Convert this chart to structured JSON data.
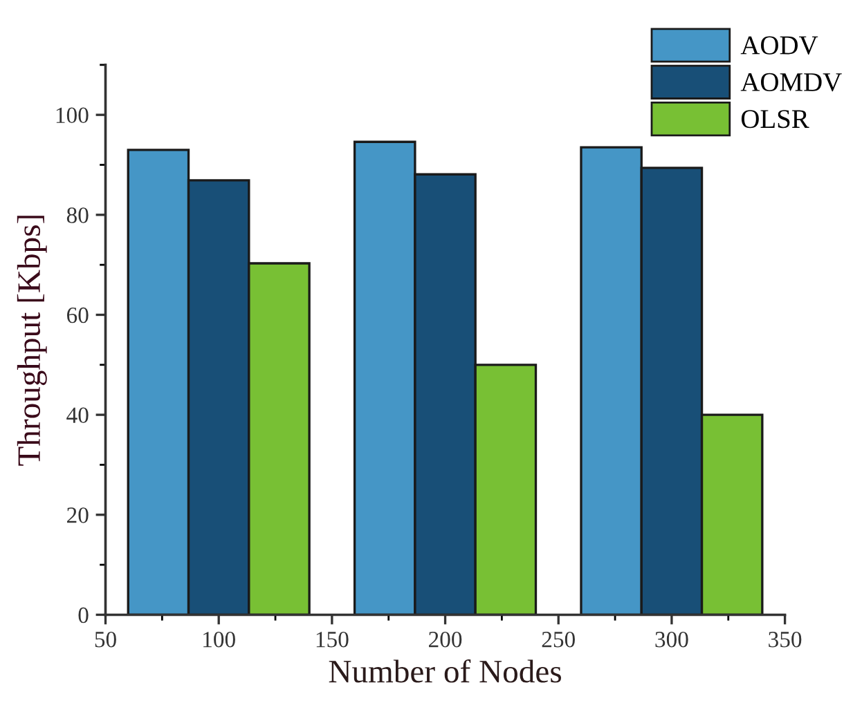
{
  "chart_data": {
    "type": "bar",
    "xlabel": "Number of Nodes",
    "ylabel": "Throughput [Kbps]",
    "x": [
      100,
      200,
      300
    ],
    "series": [
      {
        "name": "AODV",
        "color": "#4596c6",
        "values": [
          93.0,
          94.6,
          93.5
        ]
      },
      {
        "name": "AOMDV",
        "color": "#184f77",
        "values": [
          86.9,
          88.1,
          89.4
        ]
      },
      {
        "name": "OLSR",
        "color": "#78c034",
        "values": [
          70.3,
          50.0,
          40.0
        ]
      }
    ],
    "xlim": [
      50,
      350
    ],
    "xticks": [
      50,
      100,
      150,
      200,
      250,
      300,
      350
    ],
    "ylim": [
      0,
      110
    ],
    "yticks": [
      0,
      20,
      40,
      60,
      80,
      100
    ],
    "grid": false,
    "legend": "top right"
  }
}
